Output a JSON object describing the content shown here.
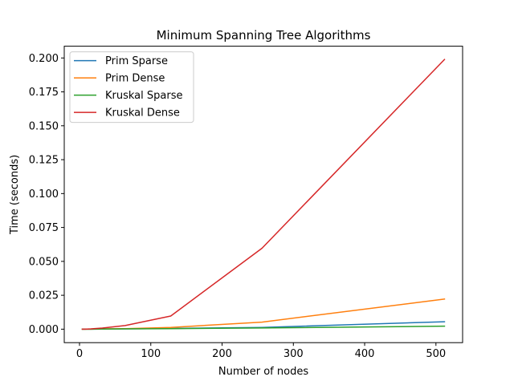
{
  "chart_data": {
    "type": "line",
    "title": "Minimum Spanning Tree Algorithms",
    "xlabel": "Number of nodes",
    "ylabel": "Time (seconds)",
    "xlim": [
      -21.4,
      537.4
    ],
    "ylim": [
      -0.00994,
      0.20868
    ],
    "xticks": [
      0,
      100,
      200,
      300,
      400,
      500
    ],
    "yticks": [
      0.0,
      0.025,
      0.05,
      0.075,
      0.1,
      0.125,
      0.15,
      0.175,
      0.2
    ],
    "ytick_labels": [
      "0.000",
      "0.025",
      "0.050",
      "0.075",
      "0.100",
      "0.125",
      "0.150",
      "0.175",
      "0.200"
    ],
    "grid": false,
    "legend_position": "upper left",
    "x": [
      4,
      8,
      16,
      32,
      64,
      128,
      256,
      512
    ],
    "series": [
      {
        "name": "Prim Sparse",
        "color": "#1f77b4",
        "values": [
          0.0,
          0.0,
          0.0,
          0.0001,
          0.0002,
          0.0005,
          0.0013,
          0.0055
        ]
      },
      {
        "name": "Prim Dense",
        "color": "#ff7f0e",
        "values": [
          0.0,
          0.0,
          0.0,
          0.0002,
          0.0004,
          0.0013,
          0.0052,
          0.0222
        ]
      },
      {
        "name": "Kruskal Sparse",
        "color": "#2ca02c",
        "values": [
          0.0,
          0.0,
          0.0,
          0.0001,
          0.0002,
          0.0004,
          0.0009,
          0.0022
        ]
      },
      {
        "name": "Kruskal Dense",
        "color": "#d62728",
        "values": [
          0.0,
          0.0,
          0.0002,
          0.0008,
          0.0027,
          0.0097,
          0.0597,
          0.1989
        ]
      }
    ]
  }
}
